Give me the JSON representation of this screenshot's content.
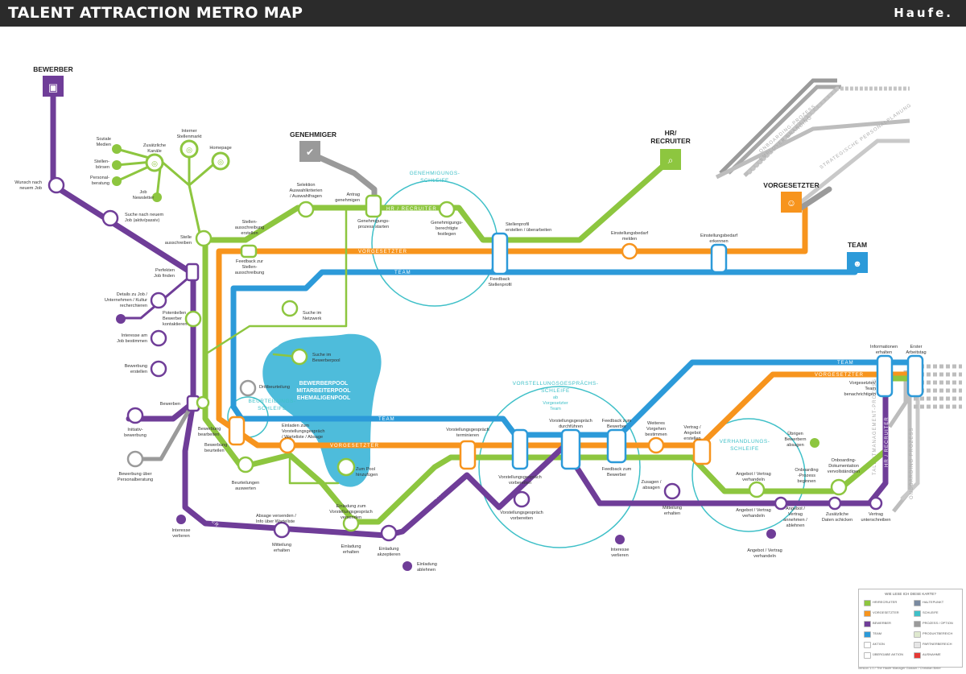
{
  "header": {
    "title": "TALENT ATTRACTION METRO MAP",
    "brand": "Haufe."
  },
  "colors": {
    "green": "#8dc63f",
    "orange": "#f7941d",
    "purple": "#6f3d98",
    "blue": "#2c9ad9",
    "grey": "#9a9a9a",
    "loop": "#3fc0c8",
    "pool": "#45b8d9",
    "header_bg": "#2b2b2b"
  },
  "terminals": {
    "bewerber": "BEWERBER",
    "genehmiger": "GENEHMIGER",
    "hr_recruiter": [
      "HR/",
      "RECRUITER"
    ],
    "vorgesetzter": "VORGESETZTER",
    "team": "TEAM"
  },
  "line_names": {
    "hr1": "HR / RECRUITER",
    "vorgesetzter1": "VORGESETZTER",
    "team1": "TEAM",
    "team2": "TEAM",
    "vorgesetzter2": "VORGESETZTER",
    "team3": "TEAM",
    "vorgesetzter3": "VORGESETZTER",
    "hr2": "HR / RECRUITER",
    "bewerber1": "BEWERBER",
    "bewerber2": "BEWERBER",
    "bewerber3": "BEWERBER",
    "hr_vertical": "HR / RECRUITER"
  },
  "loops": {
    "genehmigung": [
      "GENEHMIGUNGS-",
      "SCHLEIFE"
    ],
    "beurteilung": [
      "BEURTEILUNGS-",
      "SCHLEIFE"
    ],
    "vorstellung": [
      "VORSTELLUNGSGESPRÄCHS-",
      "SCHLEIFE"
    ],
    "vorstellung_sub": [
      "ab",
      "Vorgesetzter",
      "Team"
    ],
    "verhandlung": [
      "VERHANDLUNGS-",
      "SCHLEIFE"
    ]
  },
  "pool": [
    "BEWERBERPOOL",
    "MITARBEITERPOOL",
    "EHEMALIGENPOOL"
  ],
  "grey_lines": [
    "ONBOARDING-PROZESS",
    "STRATEGISCHE PERSONALPLANUNG",
    "EMPLOYER BRANDING",
    "EMPLOYER BRANDING-PROZESS",
    "TALENTMANAGEMENT-PROZESS",
    "ONBOARDING PROZESS"
  ],
  "channels": {
    "soziale_medien": [
      "Soziale",
      "Medien"
    ],
    "zusaetzliche_kanaele": [
      "Zusätzliche",
      "Kanäle"
    ],
    "interner_stellenmarkt": [
      "Interner",
      "Stellenmarkt"
    ],
    "homepage": "Homepage",
    "stellenboersen": [
      "Stellen-",
      "börsen"
    ],
    "personalberatung": [
      "Personal-",
      "beratung"
    ],
    "job_newsletter": [
      "Job",
      "Newsletter"
    ]
  },
  "stations": {
    "wunsch": [
      "Wunsch nach",
      "neuem Job"
    ],
    "suche": [
      "Suche nach neuem",
      "Job (aktiv/passiv)"
    ],
    "perfekten": [
      "Perfekten",
      "Job finden"
    ],
    "details": [
      "Details zu Job /",
      "Unternehmen / Kultur",
      "recherchieren"
    ],
    "potentiellen": [
      "Potentiellen",
      "Bewerber",
      "kontaktieren"
    ],
    "interesse": [
      "Interesse am",
      "Job bestimmen"
    ],
    "bewerbung_erstellen": [
      "Bewerbung",
      "erstellen"
    ],
    "bewerben": "Bewerben",
    "initiativ": [
      "Initiativ-",
      "bewerbung"
    ],
    "bewerbung_ueber": [
      "Bewerbung über",
      "Personalberatung"
    ],
    "interesse_verlieren1": [
      "Interesse",
      "verlieren"
    ],
    "stelle_ausschreiben": [
      "Stelle",
      "ausschreiben"
    ],
    "stellenausschreibung": [
      "Stellen-",
      "ausschreibung",
      "erstellen"
    ],
    "feedback_stellen": [
      "Feedback zur",
      "Stellen-",
      "ausschreibung"
    ],
    "selektion": [
      "Selektion",
      "Auswahlkriterien",
      "/ Auswahlfragen"
    ],
    "antrag": [
      "Antrag",
      "genehmigen"
    ],
    "genehmigungsprozess": [
      "Genehmigungs-",
      "prozess starten"
    ],
    "genehmigungsberechtigte": [
      "Genehmigungs-",
      "berechtigte",
      "festlegen"
    ],
    "stellenprofil": [
      "Stellenprofil",
      "erstellen / überarbeiten"
    ],
    "feedback_stellenprofil": [
      "Feedback",
      "Stellenprofil"
    ],
    "einstellungsbedarf_melden": [
      "Einstellungsbedarf",
      "melden"
    ],
    "einstellungsbedarf_erkennen": [
      "Einstellungsbedarf",
      "erkennen"
    ],
    "suche_netzwerk": [
      "Suche im",
      "Netzwerk"
    ],
    "suche_pool": [
      "Suche im",
      "Bewerberpool"
    ],
    "drittbeurteilung": "Drittbeurteilung",
    "bewerbung_bearbeiten": [
      "Bewerbung",
      "bearbeiten"
    ],
    "bewerbung_beurteilen": [
      "Bewerbung",
      "beurteilen"
    ],
    "beurteilungen": [
      "Beurteilungen",
      "auswerten"
    ],
    "einladen": [
      "Einladen zum",
      "Vorstellungsgespräch",
      "/ Warteliste / Absage"
    ],
    "zum_pool": [
      "Zum Pool",
      "hinzufügen"
    ],
    "absage": [
      "Absage versenden /",
      "Info über Warteliste"
    ],
    "mitteilung1": [
      "Mitteilung",
      "erhalten"
    ],
    "einladung_vorst": [
      "Einladung zum",
      "Vorstellungsgespräch",
      "versenden"
    ],
    "einladung_erhalten": [
      "Einladung",
      "erhalten"
    ],
    "einladung_akzeptieren": [
      "Einladung",
      "akzeptieren"
    ],
    "einladung_ablehnen": [
      "Einladung",
      "ablehnen"
    ],
    "vg_terminieren": [
      "Vorstellungsgespräch",
      "terminieren"
    ],
    "vg_vorbereiten1": [
      "Vorstellungsgespräch",
      "vorbereiten"
    ],
    "vg_vorbereiten2": [
      "Vorstellungsgespräch",
      "vorbereiten"
    ],
    "vg_durchfuehren": [
      "Vorstellungsgespräch",
      "durchführen"
    ],
    "feedback_bewerber": [
      "Feedback zum",
      "Bewerber"
    ],
    "feedback_bewerber2": [
      "Feedback zum",
      "Bewerber"
    ],
    "interesse_verlieren2": [
      "Interesse",
      "verlieren"
    ],
    "weiteres": [
      "Weiteres",
      "Vorgehen",
      "bestimmen"
    ],
    "zusagen": [
      "Zusagen /",
      "absagen"
    ],
    "mitteilung2": [
      "Mitteilung",
      "erhalten"
    ],
    "vertrag_angebot": [
      "Vertrag /",
      "Angebot",
      "erstellen"
    ],
    "angebot_verhandeln1": [
      "Angebot / Vertrag",
      "verhandeln"
    ],
    "angebot_verhandeln2": [
      "Angebot / Vertrag",
      "verhandeln"
    ],
    "angebot_annehmen": [
      "Angebot /",
      "Vertrag",
      "annehmen /",
      "ablehnen"
    ],
    "angebot_verhandeln3": [
      "Angebot / Vertrag",
      "verhandeln"
    ],
    "uebrigen": [
      "Übrigen",
      "Bewerbern",
      "absagen"
    ],
    "onboarding_beginnen": [
      "Onboarding",
      "-Prozess",
      "beginnen"
    ],
    "onboarding_doku": [
      "Onboarding-",
      "Dokumentation",
      "vervollständigen"
    ],
    "zusaetzliche_daten": [
      "Zusätzliche",
      "Daten schicken"
    ],
    "vertrag_unterschreiben": [
      "Vertrag",
      "unterschreiben"
    ],
    "informationen": [
      "Informationen",
      "erhalten"
    ],
    "erster_arbeitstag": [
      "Erster",
      "Arbeitstag"
    ],
    "vorgesetzter_team": [
      "Vorgesetzter/",
      "Team",
      "benachrichtigen"
    ]
  },
  "legend": {
    "title": "WIE LESE ICH DIESE KARTE?",
    "items": [
      {
        "label": "HR/RECRUITER",
        "color": "#8dc63f"
      },
      {
        "label": "VORGESETZTER",
        "color": "#f7941d"
      },
      {
        "label": "BEWERBER",
        "color": "#6f3d98"
      },
      {
        "label": "TEAM",
        "color": "#2c9ad9"
      },
      {
        "label": "AKTION",
        "color": "#ffffff"
      },
      {
        "label": "ÜBERGABE AKTION",
        "color": "#ffffff"
      }
    ],
    "items_right": [
      {
        "label": "HALTEPUNKT",
        "color": "#7a8aa0"
      },
      {
        "label": "SCHLEIFE",
        "color": "#3fc0c8"
      },
      {
        "label": "PROZESS / OPTION",
        "color": "#9a9a9a"
      },
      {
        "label": "PRODUKTBEREICH",
        "color": "#dfe9cf"
      },
      {
        "label": "PARTNERBEREICH",
        "color": "#e6e6e6"
      },
      {
        "label": "AUSNAHME",
        "color": "#e53935"
      }
    ],
    "credit": "version 1.0 / The Haufe Manager Glasser / Christian Beier"
  }
}
